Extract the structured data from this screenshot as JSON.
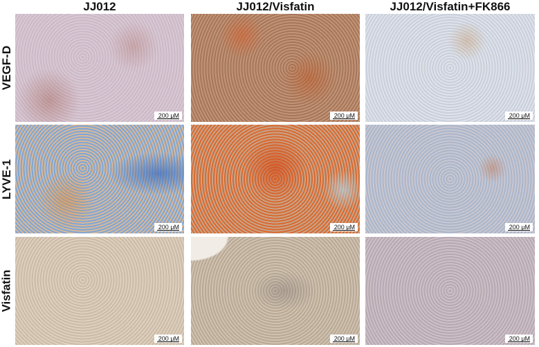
{
  "columns": [
    "JJ012",
    "JJ012/Visfatin",
    "JJ012/Visfatin+FK866"
  ],
  "rows": [
    "VEGF-D",
    "LYVE-1",
    "Visfatin"
  ],
  "scale_bar_label": "200 μM",
  "colors": {
    "dab_stain": "#c86a32",
    "hematoxylin": "#6f9bd2",
    "label_text": "#111111"
  }
}
